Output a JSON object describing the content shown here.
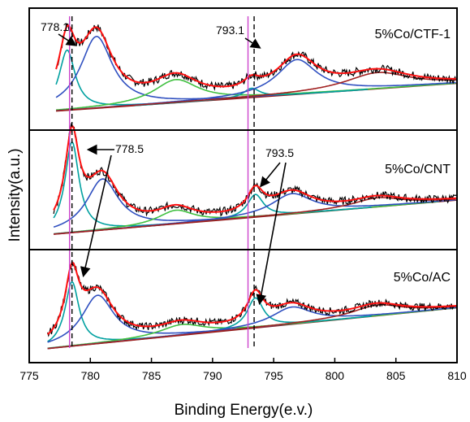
{
  "chart_data": {
    "type": "line",
    "xlabel": "Binding Energy(e.v.)",
    "ylabel": "Intensity(a.u.)",
    "xlim": [
      775,
      810
    ],
    "x_ticks": [
      "775",
      "780",
      "785",
      "790",
      "795",
      "800",
      "805",
      "810"
    ],
    "x_reversed": false,
    "grid": false,
    "reference_lines": [
      {
        "style": "solid",
        "color": "#cc44cc",
        "x": [
          778.3,
          792.9
        ]
      },
      {
        "style": "dashed",
        "color": "#000000",
        "x": [
          778.5,
          793.4
        ]
      }
    ],
    "panels": [
      {
        "label": "5%Co/CTF-1",
        "annotations": [
          "778.1",
          "793.1"
        ],
        "background": [
          [
            777.2,
            0.08
          ],
          [
            810,
            0.32
          ]
        ],
        "peaks": [
          {
            "center": 778.1,
            "height": 0.52,
            "width": 0.8,
            "color": "#00a0a0"
          },
          {
            "center": 780.5,
            "height": 0.62,
            "width": 1.6,
            "color": "#3050c0"
          },
          {
            "center": 787.0,
            "height": 0.2,
            "width": 2.2,
            "color": "#40c040"
          },
          {
            "center": 793.2,
            "height": 0.08,
            "width": 0.8,
            "color": "#00a0a0"
          },
          {
            "center": 796.9,
            "height": 0.3,
            "width": 2.0,
            "color": "#3050c0"
          },
          {
            "center": 803.5,
            "height": 0.14,
            "width": 3.2,
            "color": "#a02020"
          }
        ]
      },
      {
        "label": "5%Co/CNT",
        "annotations": [
          "778.5",
          "793.5"
        ],
        "background": [
          [
            777.0,
            0.05
          ],
          [
            810,
            0.35
          ]
        ],
        "peaks": [
          {
            "center": 778.5,
            "height": 0.8,
            "width": 0.7,
            "color": "#00a0a0"
          },
          {
            "center": 781.0,
            "height": 0.45,
            "width": 1.6,
            "color": "#3050c0"
          },
          {
            "center": 787.0,
            "height": 0.12,
            "width": 1.8,
            "color": "#40c040"
          },
          {
            "center": 793.5,
            "height": 0.2,
            "width": 0.8,
            "color": "#00a0a0"
          },
          {
            "center": 796.5,
            "height": 0.18,
            "width": 2.0,
            "color": "#3050c0"
          },
          {
            "center": 803.5,
            "height": 0.08,
            "width": 2.5,
            "color": "#a02020"
          }
        ]
      },
      {
        "label": "5%Co/AC",
        "annotations": [],
        "background": [
          [
            776.5,
            0.04
          ],
          [
            810,
            0.42
          ]
        ],
        "peaks": [
          {
            "center": 778.5,
            "height": 0.6,
            "width": 0.7,
            "color": "#00a0a0"
          },
          {
            "center": 780.6,
            "height": 0.45,
            "width": 1.6,
            "color": "#3050c0"
          },
          {
            "center": 787.5,
            "height": 0.1,
            "width": 2.2,
            "color": "#40c040"
          },
          {
            "center": 793.5,
            "height": 0.28,
            "width": 0.8,
            "color": "#00a0a0"
          },
          {
            "center": 796.5,
            "height": 0.16,
            "width": 2.0,
            "color": "#3050c0"
          },
          {
            "center": 803.5,
            "height": 0.1,
            "width": 2.5,
            "color": "#a02020"
          }
        ]
      }
    ],
    "colors": {
      "envelope": "#ff1010",
      "raw_data": "#000000",
      "background_line": "#8b1a1a",
      "pink_line": "#cc44cc"
    }
  }
}
